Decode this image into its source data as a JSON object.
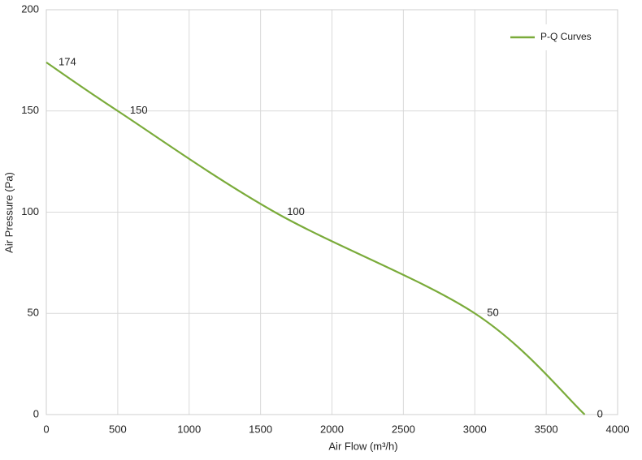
{
  "chart_data": {
    "type": "line",
    "x_label": "Air Flow  (m³/h)",
    "y_label": "Air Pressure  (Pa)",
    "x": [
      0,
      500,
      1600,
      3000,
      3770
    ],
    "series": [
      {
        "name": "P-Q Curves",
        "color": "#7aab3a",
        "values": [
          174,
          150,
          100,
          50,
          0
        ]
      }
    ],
    "xlim": [
      0,
      4000
    ],
    "xticks": [
      0,
      500,
      1000,
      1500,
      2000,
      2500,
      3000,
      3500,
      4000
    ],
    "ylim": [
      0,
      200
    ],
    "yticks": [
      0,
      50,
      100,
      150,
      200
    ],
    "grid": true,
    "legend": "upper right",
    "data_labels": true,
    "smooth": true
  }
}
